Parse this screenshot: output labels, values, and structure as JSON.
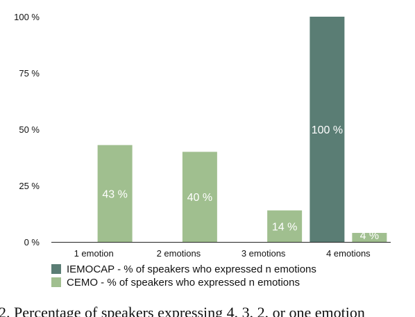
{
  "chart_data": {
    "type": "bar",
    "categories": [
      "1 emotion",
      "2 emotions",
      "3 emotions",
      "4 emotions"
    ],
    "series": [
      {
        "name": "IEMOCAP - % of speakers who expressed n emotions",
        "values": [
          0,
          0,
          0,
          100
        ],
        "labels": [
          "",
          "",
          "",
          "100 %"
        ],
        "color": "#5a7d74"
      },
      {
        "name": "CEMO - % of speakers who expressed n emotions",
        "values": [
          43,
          40,
          14,
          4
        ],
        "labels": [
          "43 %",
          "40 %",
          "14 %",
          "4 %"
        ],
        "color": "#a0bf8f"
      }
    ],
    "y_ticks": [
      {
        "value": 0,
        "label": "0 %"
      },
      {
        "value": 25,
        "label": "25 %"
      },
      {
        "value": 50,
        "label": "50 %"
      },
      {
        "value": 75,
        "label": "75 %"
      },
      {
        "value": 100,
        "label": "100 %"
      }
    ],
    "ylim": [
      0,
      100
    ],
    "grid": false,
    "legend_position": "bottom-left"
  },
  "caption": "2. Percentage of speakers expressing 4, 3, 2, or one emotion"
}
